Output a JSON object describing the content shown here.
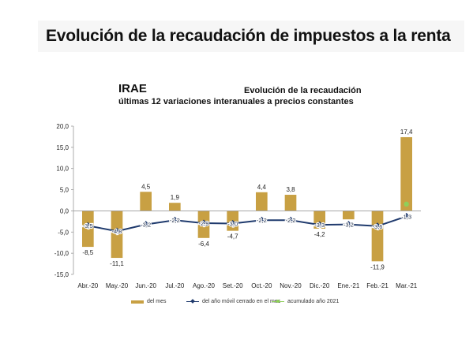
{
  "header": {
    "title": "Evolución de la recaudación de impuestos a la renta"
  },
  "chart_data": {
    "type": "bar",
    "tax_label": "IRAE",
    "title": "Evolución de la recaudación",
    "subtitle": "últimas 12 variaciones interanuales a precios constantes",
    "categories": [
      "Abr.-20",
      "May.-20",
      "Jun.-20",
      "Jul.-20",
      "Ago.-20",
      "Set.-20",
      "Oct.-20",
      "Nov.-20",
      "Dic.-20",
      "Ene.-21",
      "Feb.-21",
      "Mar.-21"
    ],
    "ylim": [
      -15,
      20
    ],
    "yticks": [
      "-15,0",
      "-10,0",
      "-5,0",
      "0,0",
      "5,0",
      "10,0",
      "15,0",
      "20,0"
    ],
    "ytick_values": [
      -15,
      -10,
      -5,
      0,
      5,
      10,
      15,
      20
    ],
    "grid": false,
    "legend_position": "bottom",
    "series": [
      {
        "name": "del mes",
        "kind": "bar",
        "color": "#c8a043",
        "values": [
          -8.5,
          -11.1,
          4.5,
          1.9,
          -6.4,
          -4.7,
          4.4,
          3.8,
          -4.2,
          -2.0,
          -11.9,
          17.4
        ],
        "labels": [
          "-8,5",
          "-11,1",
          "4,5",
          "1,9",
          "-6,4",
          "-4,7",
          "4,4",
          "3,8",
          "-4,2",
          "",
          "-11,9",
          "17,4"
        ]
      },
      {
        "name": "del año móvil cerrado en el mes",
        "kind": "line",
        "color": "#1f3a6d",
        "values": [
          -3.5,
          -4.8,
          -3.2,
          -2.2,
          -2.9,
          -3.0,
          -2.2,
          -2.2,
          -3.3,
          -3.2,
          -3.6,
          -1.3
        ],
        "labels": [
          "-3,5",
          "-4,8",
          "-3,2",
          "-2,2",
          "-2,9",
          "-3,0",
          "-2,2",
          "-2,2",
          "-3,3",
          "-3,2",
          "-3,6",
          "-1,3"
        ]
      },
      {
        "name": "acumulado año 2021",
        "kind": "point",
        "color": "#8fcf5a",
        "values": [
          null,
          null,
          null,
          null,
          null,
          null,
          null,
          null,
          null,
          null,
          null,
          1.6
        ],
        "labels": [
          "",
          "",
          "",
          "",
          "",
          "",
          "",
          "",
          "",
          "",
          "",
          ""
        ]
      }
    ]
  }
}
